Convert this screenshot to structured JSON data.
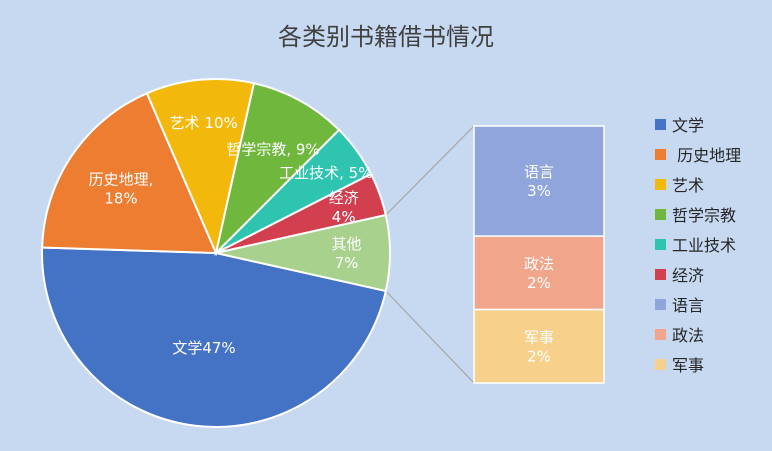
{
  "chart_data": {
    "type": "pie",
    "subtype": "bar-of-pie",
    "title": "各类别书籍借书情况",
    "slices": [
      {
        "name": "文学",
        "value": 47,
        "label_lines": [
          "文学47%"
        ],
        "color": "#4472c4"
      },
      {
        "name": "历史地理",
        "value": 18,
        "label_lines": [
          "历史地理,",
          "18%"
        ],
        "color": "#ed7d31"
      },
      {
        "name": "艺术",
        "value": 10,
        "label_lines": [
          "艺术 10%"
        ],
        "color": "#f2b90c"
      },
      {
        "name": "哲学宗教",
        "value": 9,
        "label_lines": [
          "哲学宗教, 9%"
        ],
        "color": "#70b73d"
      },
      {
        "name": "工业技术",
        "value": 5,
        "label_lines": [
          "工业技术, 5%"
        ],
        "color": "#2ec4b0"
      },
      {
        "name": "经济",
        "value": 4,
        "label_lines": [
          "经济",
          "4%"
        ],
        "color": "#d2404f"
      },
      {
        "name": "其他",
        "value": 7,
        "label_lines": [
          "其他",
          "7%"
        ],
        "color": "#a9d18e"
      }
    ],
    "breakout": [
      {
        "name": "语言",
        "value": 3,
        "label_lines": [
          "语言",
          "3%"
        ],
        "color": "#8fa5db"
      },
      {
        "name": "政法",
        "value": 2,
        "label_lines": [
          "政法",
          "2%"
        ],
        "color": "#f1a58a"
      },
      {
        "name": "军事",
        "value": 2,
        "label_lines": [
          "军事",
          "2%"
        ],
        "color": "#f7d08c"
      }
    ],
    "legend": [
      {
        "name": "文学",
        "color": "#4472c4"
      },
      {
        "name": " 历史地理",
        "color": "#ed7d31"
      },
      {
        "name": "艺术",
        "color": "#f2b90c"
      },
      {
        "name": "哲学宗教",
        "color": "#70b73d"
      },
      {
        "name": "工业技术",
        "color": "#2ec4b0"
      },
      {
        "name": "经济",
        "color": "#d2404f"
      },
      {
        "name": "语言",
        "color": "#8fa5db"
      },
      {
        "name": "政法",
        "color": "#f1a58a"
      },
      {
        "name": "军事",
        "color": "#f7d08c"
      }
    ],
    "legend_position": "right"
  }
}
